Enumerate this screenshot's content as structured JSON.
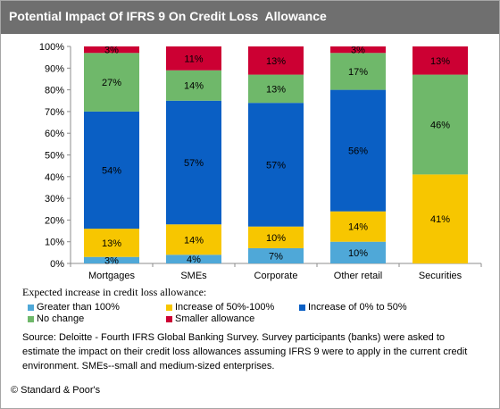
{
  "title": "Potential Impact Of IFRS 9 On Credit Loss  Allowance",
  "chart_data": {
    "type": "bar",
    "stacked": true,
    "percent_stacked": true,
    "categories": [
      "Mortgages",
      "SMEs",
      "Corporate",
      "Other retail",
      "Securities"
    ],
    "ylim": [
      0,
      100
    ],
    "y_ticks": [
      "0%",
      "10%",
      "20%",
      "30%",
      "40%",
      "50%",
      "60%",
      "70%",
      "80%",
      "90%",
      "100%"
    ],
    "grid": false,
    "series": [
      {
        "name": "Greater than 100%",
        "color": "#4fa8d8",
        "values": [
          3,
          4,
          7,
          10,
          0
        ],
        "labels": [
          "3%",
          "4%",
          "7%",
          "10%",
          ""
        ]
      },
      {
        "name": "Increase of 50%-100%",
        "color": "#f7c600",
        "values": [
          13,
          14,
          10,
          14,
          41
        ],
        "labels": [
          "13%",
          "14%",
          "10%",
          "14%",
          "41%"
        ]
      },
      {
        "name": "Increase of 0% to 50%",
        "color": "#0a5fc4",
        "values": [
          54,
          57,
          57,
          56,
          0
        ],
        "labels": [
          "54%",
          "57%",
          "57%",
          "56%",
          ""
        ]
      },
      {
        "name": "No change",
        "color": "#6fb86a",
        "values": [
          27,
          14,
          13,
          17,
          46
        ],
        "labels": [
          "27%",
          "14%",
          "13%",
          "17%",
          "46%"
        ]
      },
      {
        "name": "Smaller allowance",
        "color": "#cc0033",
        "values": [
          3,
          11,
          13,
          3,
          13
        ],
        "labels": [
          "3%",
          "11%",
          "13%",
          "3%",
          "13%"
        ]
      }
    ]
  },
  "legend": {
    "title": "Expected increase in credit loss allowance:",
    "placement": "bottom"
  },
  "source": "Source: Deloitte - Fourth IFRS Global Banking Survey. Survey participants (banks) were asked to estimate the impact on their credit loss allowances assuming IFRS 9 were to apply in the current credit environment. SMEs--small and medium-sized enterprises.",
  "copyright": "© Standard & Poor's",
  "colors": {
    "title_bar": "#6f6f6f",
    "border": "#a6a6a6"
  }
}
